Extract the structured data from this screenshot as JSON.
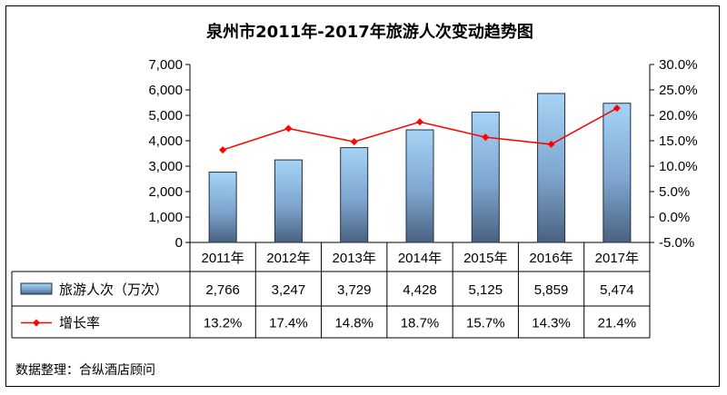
{
  "chart_data": {
    "type": "bar+line",
    "title": "泉州市2011年-2017年旅游人次变动趋势图",
    "categories": [
      "2011年",
      "2012年",
      "2013年",
      "2014年",
      "2015年",
      "2016年",
      "2017年"
    ],
    "series": [
      {
        "name": "旅游人次（万次）",
        "kind": "bar",
        "axis": "left",
        "values": [
          2766,
          3247,
          3729,
          4428,
          5125,
          5859,
          5474
        ],
        "labels": [
          "2,766",
          "3,247",
          "3,729",
          "4,428",
          "5,125",
          "5,859",
          "5,474"
        ],
        "color": "#7eaad6"
      },
      {
        "name": "增长率",
        "kind": "line",
        "axis": "right",
        "values": [
          13.2,
          17.4,
          14.8,
          18.7,
          15.7,
          14.3,
          21.4
        ],
        "labels": [
          "13.2%",
          "17.4%",
          "14.8%",
          "18.7%",
          "15.7%",
          "14.3%",
          "21.4%"
        ],
        "color": "#ff0000"
      }
    ],
    "y_left": {
      "ylim": [
        0,
        7000
      ],
      "ticks": [
        0,
        1000,
        2000,
        3000,
        4000,
        5000,
        6000,
        7000
      ],
      "tick_labels": [
        "0",
        "1,000",
        "2,000",
        "3,000",
        "4,000",
        "5,000",
        "6,000",
        "7,000"
      ]
    },
    "y_right": {
      "ylim": [
        -5,
        30
      ],
      "ticks": [
        -5,
        0,
        5,
        10,
        15,
        20,
        25,
        30
      ],
      "tick_labels": [
        "-5.0%",
        "0.0%",
        "5.0%",
        "10.0%",
        "15.0%",
        "20.0%",
        "25.0%",
        "30.0%"
      ]
    },
    "grid": false,
    "legend": "data-table"
  },
  "source_note": "数据整理：合纵酒店顾问"
}
